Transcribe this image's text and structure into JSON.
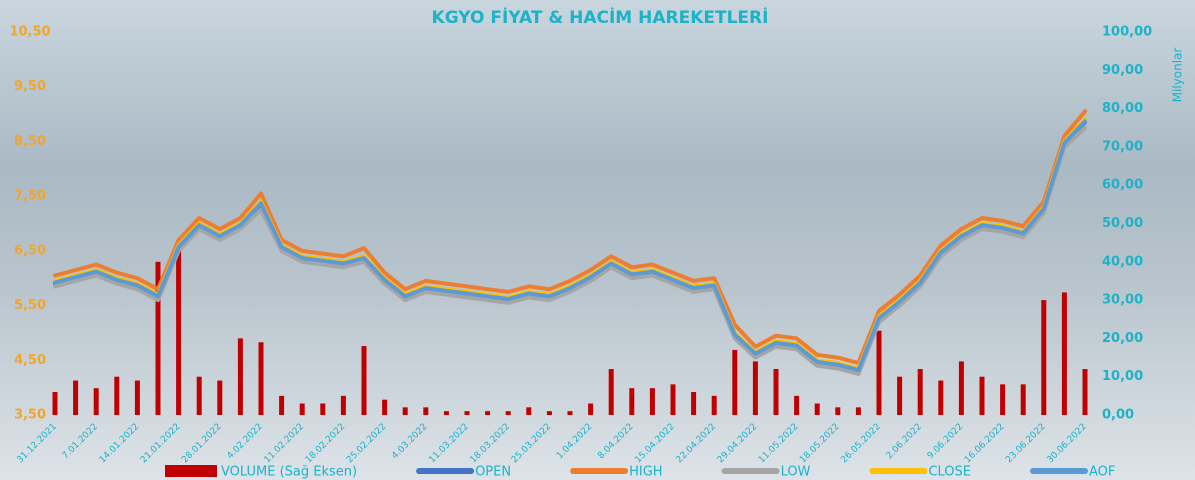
{
  "chart_data": {
    "type": "line",
    "title": "KGYO FİYAT & HACİM HAREKETLERİ",
    "y2_label": "Milyonlar",
    "categories": [
      "31.12.2021",
      null,
      "7.01.2022",
      null,
      "14.01.2022",
      null,
      "21.01.2022",
      null,
      "28.01.2022",
      null,
      "4.02.2022",
      null,
      "11.02.2022",
      null,
      "18.02.2022",
      null,
      "25.02.2022",
      null,
      "4.03.2022",
      null,
      "11.03.2022",
      null,
      "18.03.2022",
      null,
      "25.03.2022",
      null,
      "1.04.2022",
      null,
      "8.04.2022",
      null,
      "15.04.2022",
      null,
      "22.04.2022",
      null,
      "29.04.2022",
      null,
      "11.05.2022",
      null,
      "18.05.2022",
      null,
      "26.05.2022",
      null,
      "2.06.2022",
      null,
      "9.06.2022",
      null,
      "16.06.2022",
      null,
      "23.06.2022",
      null,
      "30.06.2022"
    ],
    "ylim": [
      3.5,
      10.5
    ],
    "yticks": [
      {
        "value": 3.5,
        "label": "3,50"
      },
      {
        "value": 4.5,
        "label": "4,50"
      },
      {
        "value": 5.5,
        "label": "5,50"
      },
      {
        "value": 6.5,
        "label": "6,50"
      },
      {
        "value": 7.5,
        "label": "7,50"
      },
      {
        "value": 8.5,
        "label": "8,50"
      },
      {
        "value": 9.5,
        "label": "9,50"
      },
      {
        "value": 10.5,
        "label": "10,50"
      }
    ],
    "y2lim": [
      0,
      100
    ],
    "y2ticks": [
      {
        "value": 0,
        "label": "0,00"
      },
      {
        "value": 10,
        "label": "10,00"
      },
      {
        "value": 20,
        "label": "20,00"
      },
      {
        "value": 30,
        "label": "30,00"
      },
      {
        "value": 40,
        "label": "40,00"
      },
      {
        "value": 50,
        "label": "50,00"
      },
      {
        "value": 60,
        "label": "60,00"
      },
      {
        "value": 70,
        "label": "70,00"
      },
      {
        "value": 80,
        "label": "80,00"
      },
      {
        "value": 90,
        "label": "90,00"
      },
      {
        "value": 100,
        "label": "100,00"
      }
    ],
    "legend": "bottom",
    "series": [
      {
        "name": "VOLUME (Sağ Eksen)",
        "type": "bar",
        "axis": "y2",
        "color": "#c00000",
        "values": [
          6,
          9,
          7,
          10,
          9,
          40,
          45,
          10,
          9,
          20,
          19,
          5,
          3,
          3,
          5,
          18,
          4,
          2,
          2,
          1,
          1,
          1,
          1,
          2,
          1,
          1,
          3,
          12,
          7,
          7,
          8,
          6,
          5,
          17,
          14,
          12,
          5,
          3,
          2,
          2,
          22,
          10,
          12,
          9,
          14,
          10,
          8,
          8,
          30,
          32,
          12
        ]
      },
      {
        "name": "OPEN",
        "color": "#4472c4",
        "values": [
          5.9,
          6.0,
          6.1,
          5.95,
          5.85,
          5.65,
          6.55,
          6.95,
          6.75,
          6.95,
          7.35,
          6.55,
          6.35,
          6.3,
          6.25,
          6.35,
          5.95,
          5.65,
          5.8,
          5.75,
          5.7,
          5.65,
          5.6,
          5.7,
          5.65,
          5.8,
          6.0,
          6.25,
          6.05,
          6.1,
          5.95,
          5.8,
          5.85,
          4.95,
          4.6,
          4.8,
          4.75,
          4.45,
          4.4,
          4.3,
          5.25,
          5.55,
          5.9,
          6.45,
          6.75,
          6.95,
          6.9,
          6.8,
          7.25,
          8.45,
          8.85
        ]
      },
      {
        "name": "HIGH",
        "color": "#ed7d31",
        "values": [
          6.05,
          6.15,
          6.25,
          6.1,
          6.0,
          5.8,
          6.7,
          7.1,
          6.9,
          7.1,
          7.55,
          6.7,
          6.5,
          6.45,
          6.4,
          6.55,
          6.1,
          5.8,
          5.95,
          5.9,
          5.85,
          5.8,
          5.75,
          5.85,
          5.8,
          5.95,
          6.15,
          6.4,
          6.2,
          6.25,
          6.1,
          5.95,
          6.0,
          5.15,
          4.75,
          4.95,
          4.9,
          4.6,
          4.55,
          4.45,
          5.4,
          5.7,
          6.05,
          6.6,
          6.9,
          7.1,
          7.05,
          6.95,
          7.4,
          8.6,
          9.05
        ]
      },
      {
        "name": "LOW",
        "color": "#a5a5a5",
        "values": [
          5.85,
          5.95,
          6.05,
          5.9,
          5.8,
          5.6,
          6.5,
          6.9,
          6.7,
          6.9,
          7.25,
          6.5,
          6.3,
          6.25,
          6.2,
          6.3,
          5.9,
          5.6,
          5.75,
          5.7,
          5.65,
          5.6,
          5.55,
          5.65,
          5.6,
          5.75,
          5.95,
          6.2,
          6.0,
          6.05,
          5.9,
          5.75,
          5.8,
          4.9,
          4.55,
          4.75,
          4.7,
          4.4,
          4.35,
          4.25,
          5.2,
          5.5,
          5.85,
          6.4,
          6.7,
          6.9,
          6.85,
          6.75,
          7.2,
          8.4,
          8.75
        ]
      },
      {
        "name": "CLOSE",
        "color": "#ffc000",
        "values": [
          5.95,
          6.05,
          6.15,
          6.0,
          5.9,
          5.7,
          6.6,
          7.0,
          6.8,
          7.0,
          7.4,
          6.6,
          6.4,
          6.35,
          6.3,
          6.4,
          6.0,
          5.7,
          5.85,
          5.8,
          5.75,
          5.7,
          5.65,
          5.75,
          5.7,
          5.85,
          6.05,
          6.3,
          6.1,
          6.15,
          6.0,
          5.85,
          5.9,
          5.0,
          4.65,
          4.85,
          4.8,
          4.5,
          4.45,
          4.35,
          5.3,
          5.6,
          5.95,
          6.5,
          6.8,
          7.0,
          6.95,
          6.85,
          7.3,
          8.5,
          8.9
        ]
      },
      {
        "name": "AOF",
        "color": "#5b9bd5",
        "values": [
          5.92,
          6.02,
          6.12,
          5.97,
          5.87,
          5.67,
          6.57,
          6.97,
          6.77,
          6.97,
          7.37,
          6.57,
          6.37,
          6.32,
          6.27,
          6.37,
          5.97,
          5.67,
          5.82,
          5.77,
          5.72,
          5.67,
          5.62,
          5.72,
          5.67,
          5.82,
          6.02,
          6.27,
          6.07,
          6.12,
          5.97,
          5.82,
          5.87,
          4.97,
          4.62,
          4.82,
          4.77,
          4.47,
          4.42,
          4.32,
          5.27,
          5.57,
          5.92,
          6.47,
          6.77,
          6.97,
          6.92,
          6.82,
          7.27,
          8.47,
          8.87
        ]
      }
    ]
  }
}
